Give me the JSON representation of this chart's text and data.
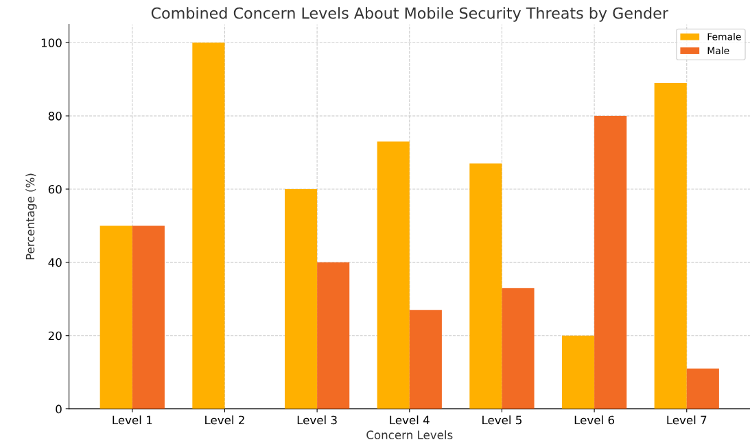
{
  "chart_data": {
    "type": "bar",
    "title": "Combined Concern Levels About Mobile Security Threats by Gender",
    "xlabel": "Concern Levels",
    "ylabel": "Percentage (%)",
    "categories": [
      "Level 1",
      "Level 2",
      "Level 3",
      "Level 4",
      "Level 5",
      "Level 6",
      "Level 7"
    ],
    "series": [
      {
        "name": "Female",
        "color": "#ffb000",
        "values": [
          50,
          100,
          60,
          73,
          67,
          20,
          89
        ]
      },
      {
        "name": "Male",
        "color": "#f26b24",
        "values": [
          50,
          0,
          40,
          27,
          33,
          80,
          11
        ]
      }
    ],
    "ylim": [
      0,
      105
    ],
    "yticks": [
      0,
      20,
      40,
      60,
      80,
      100
    ],
    "grid": true,
    "legend": "top right"
  }
}
